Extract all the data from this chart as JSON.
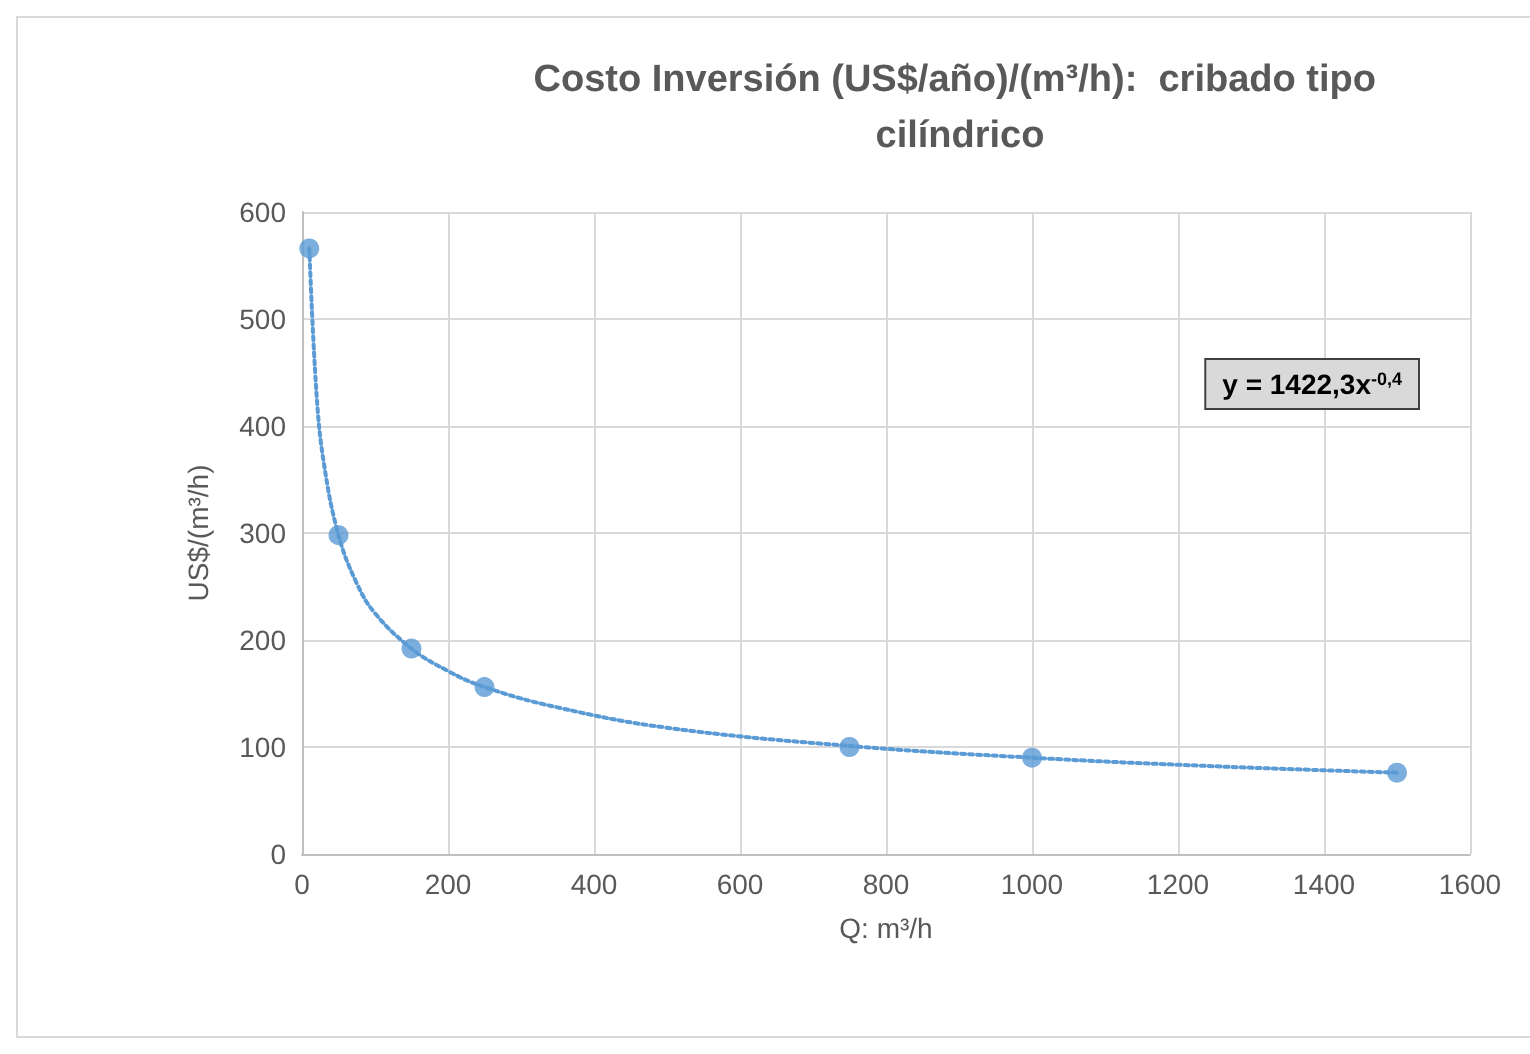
{
  "chart_data": {
    "type": "scatter",
    "title": "Costo Inversión (US$/año)/(m³/h):  cribado tipo cilíndrico",
    "xlabel": "Q: m³/h",
    "ylabel": "US$/(m³/h)",
    "annotations": [
      "y = 1422,3x$^{-0,4}$"
    ],
    "series": [
      {
        "color": "#5b9bd5",
        "x": [
          10,
          50,
          150,
          250,
          750,
          1000,
          1500
        ],
        "values": [
          566,
          298,
          192,
          156,
          100,
          90,
          76
        ]
      },
      {
        "type": "line",
        "color": "#5b9bd5",
        "line_style": "dotted",
        "marker": "none",
        "x": [
          10,
          20,
          30,
          50,
          75,
          100,
          150,
          200,
          250,
          350,
          500,
          750,
          1000,
          1250,
          1500
        ],
        "values": [
          566,
          429,
          365,
          298,
          253,
          225,
          192,
          171,
          156,
          137,
          118,
          101,
          90,
          82,
          76
        ]
      }
    ],
    "xlim": [
      0,
      1600
    ],
    "xticks": [
      0,
      200,
      400,
      600,
      800,
      1000,
      1200,
      1400,
      1600
    ],
    "ylim": [
      0,
      600
    ],
    "yticks": [
      0,
      100,
      200,
      300,
      400,
      500,
      600
    ],
    "grid": true,
    "marker": "circle"
  }
}
